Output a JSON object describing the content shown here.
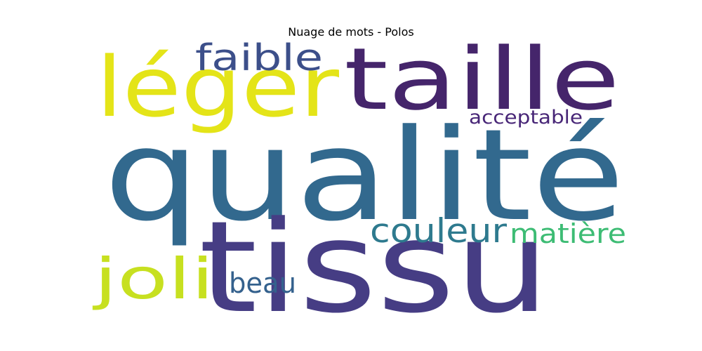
{
  "chart_data": {
    "type": "wordcloud",
    "title": "Nuage de mots - Polos",
    "words": [
      {
        "text": "qualité",
        "color": "#32698e"
      },
      {
        "text": "tissu",
        "color": "#463d84"
      },
      {
        "text": "taille",
        "color": "#45256b"
      },
      {
        "text": "léger",
        "color": "#e4e418"
      },
      {
        "text": "faible",
        "color": "#3c4f8a"
      },
      {
        "text": "acceptable",
        "color": "#482677"
      },
      {
        "text": "couleur",
        "color": "#2e7a8e"
      },
      {
        "text": "matière",
        "color": "#3dbc74"
      },
      {
        "text": "joli",
        "color": "#c7e020"
      },
      {
        "text": "beau",
        "color": "#34618d"
      }
    ]
  }
}
